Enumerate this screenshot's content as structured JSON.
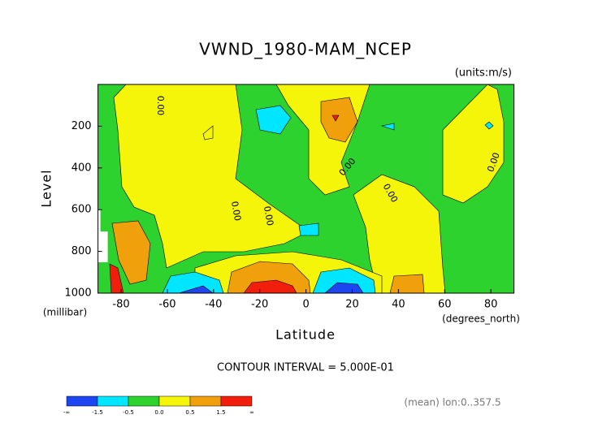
{
  "chart_data": {
    "type": "contour",
    "title": "VWND_1980-MAM_NCEP",
    "units": "(units:m/s)",
    "y_label": "Level",
    "y_units": "(millibar)",
    "x_label": "Latitude",
    "x_units": "(degrees_north)",
    "contour_interval": "CONTOUR INTERVAL = 5.000E-01",
    "footnote": "(mean) lon:0..357.5",
    "contour_labels": [
      "0.00",
      "0.00",
      "0.00",
      "0.00",
      "0.00",
      "0.00"
    ],
    "xlim": [
      -90,
      90
    ],
    "xticks": [
      -80,
      -60,
      -40,
      -20,
      0,
      20,
      40,
      60,
      80
    ],
    "ylim": [
      1000,
      0
    ],
    "yticks": [
      200,
      400,
      600,
      800,
      1000
    ],
    "colorbar": {
      "colors": [
        "#1e46f0",
        "#00e6ff",
        "#2ed22e",
        "#f5f50a",
        "#f0a00a",
        "#f01e0a"
      ],
      "level_labels": [
        "-∞",
        "-1.5",
        "-0.5",
        "0.0",
        "0.5",
        "1.5",
        "∞"
      ]
    }
  }
}
